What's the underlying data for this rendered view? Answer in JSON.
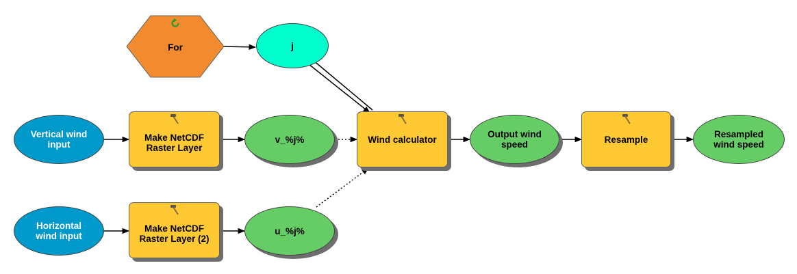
{
  "diagram": {
    "nodes": {
      "for": {
        "label": "For",
        "color": "#f28b2f",
        "icon": "iterate-icon"
      },
      "j": {
        "label": "j",
        "color": "#00ffcc"
      },
      "vertical_wind_input": {
        "label": "Vertical wind\ninput",
        "color": "#0099cc"
      },
      "make_netcdf_1": {
        "label": "Make NetCDF\nRaster Layer",
        "color": "#ffc933",
        "icon": "hammer-icon"
      },
      "v_var": {
        "label": "v_%j%",
        "color": "#66cc66"
      },
      "wind_calculator": {
        "label": "Wind calculator",
        "color": "#ffc933",
        "icon": "hammer-icon"
      },
      "output_wind_speed": {
        "label": "Output wind\nspeed",
        "color": "#66cc66"
      },
      "resample": {
        "label": "Resample",
        "color": "#ffc933",
        "icon": "hammer-icon"
      },
      "resampled_wind_speed": {
        "label": "Resampled\nwind speed",
        "color": "#66cc66"
      },
      "horizontal_wind_input": {
        "label": "Horizontal\nwind input",
        "color": "#0099cc"
      },
      "make_netcdf_2": {
        "label": "Make NetCDF\nRaster Layer (2)",
        "color": "#ffc933",
        "icon": "hammer-icon"
      },
      "u_var": {
        "label": "u_%j%",
        "color": "#66cc66"
      }
    },
    "connections": [
      {
        "from": "for",
        "to": "j",
        "style": "solid"
      },
      {
        "from": "j",
        "to": "wind_calculator",
        "style": "double"
      },
      {
        "from": "vertical_wind_input",
        "to": "make_netcdf_1",
        "style": "solid"
      },
      {
        "from": "make_netcdf_1",
        "to": "v_var",
        "style": "solid"
      },
      {
        "from": "v_var",
        "to": "wind_calculator",
        "style": "dotted"
      },
      {
        "from": "horizontal_wind_input",
        "to": "make_netcdf_2",
        "style": "solid"
      },
      {
        "from": "make_netcdf_2",
        "to": "u_var",
        "style": "solid"
      },
      {
        "from": "u_var",
        "to": "wind_calculator",
        "style": "dotted"
      },
      {
        "from": "wind_calculator",
        "to": "output_wind_speed",
        "style": "solid"
      },
      {
        "from": "output_wind_speed",
        "to": "resample",
        "style": "solid"
      },
      {
        "from": "resample",
        "to": "resampled_wind_speed",
        "style": "solid"
      }
    ]
  }
}
